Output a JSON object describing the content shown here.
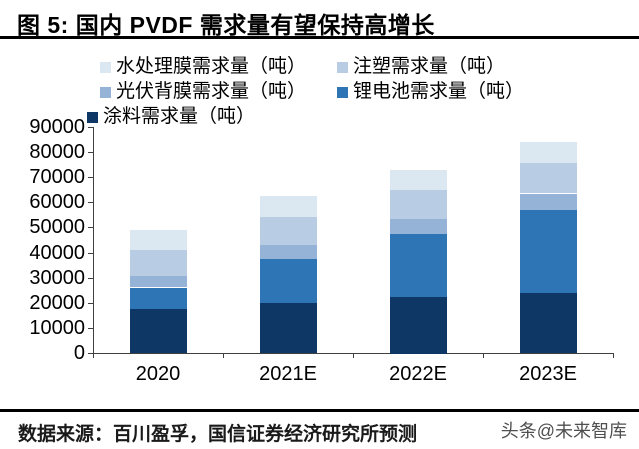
{
  "figure": {
    "title": "图 5: 国内 PVDF 需求量有望保持高增长",
    "source": "数据来源：百川盈孚，国信证券经济研究所预测",
    "watermark": "头条@未来智库"
  },
  "chart_data": {
    "type": "bar",
    "stacked": true,
    "title": "国内 PVDF 需求量有望保持高增长",
    "categories": [
      "2020",
      "2021E",
      "2022E",
      "2023E"
    ],
    "series": [
      {
        "name": "涂料需求量（吨）",
        "color": "#0e3766",
        "values": [
          17500,
          20000,
          22500,
          24000
        ]
      },
      {
        "name": "锂电池需求量（吨）",
        "color": "#2e75b6",
        "values": [
          8500,
          17500,
          25000,
          33000
        ]
      },
      {
        "name": "光伏背膜需求量（吨）",
        "color": "#95b3d7",
        "values": [
          4500,
          5500,
          6000,
          6500
        ]
      },
      {
        "name": "注塑需求量（吨）",
        "color": "#b8cce4",
        "values": [
          10500,
          11000,
          11500,
          12000
        ]
      },
      {
        "name": "水处理膜需求量（吨）",
        "color": "#dbe7f1",
        "values": [
          8000,
          8500,
          8000,
          8500
        ]
      }
    ],
    "ylim": [
      0,
      90000
    ],
    "ytick_step": 10000,
    "ytick_labels": [
      "0",
      "10000",
      "20000",
      "30000",
      "40000",
      "50000",
      "60000",
      "70000",
      "80000",
      "90000"
    ],
    "legend": {
      "position": "top",
      "items": [
        {
          "series_index": 4,
          "row": 0,
          "col": 0
        },
        {
          "series_index": 3,
          "row": 0,
          "col": 1
        },
        {
          "series_index": 2,
          "row": 1,
          "col": 0
        },
        {
          "series_index": 1,
          "row": 1,
          "col": 1
        },
        {
          "series_index": 0,
          "row": 2,
          "col": 0
        }
      ]
    },
    "axis_color": "#404040",
    "grid": false
  }
}
